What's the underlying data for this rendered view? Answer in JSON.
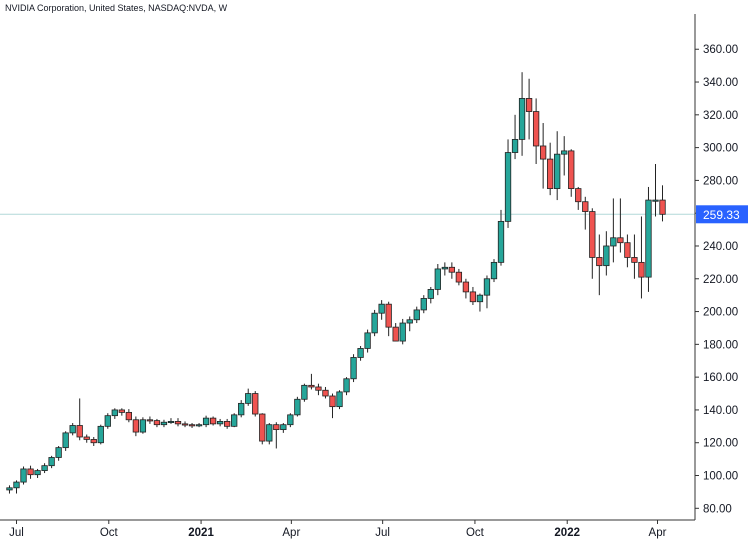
{
  "header": {
    "title": "NVIDIA Corporation, United States, NASDAQ:NVDA, W"
  },
  "chart_data": {
    "type": "candlestick",
    "title": "NVIDIA Corporation, United States, NASDAQ:NVDA, W",
    "interval": "W",
    "ylim": [
      75,
      370
    ],
    "y_ticks": [
      80,
      100,
      120,
      140,
      160,
      180,
      200,
      220,
      240,
      260,
      280,
      300,
      320,
      340,
      360
    ],
    "y_tick_labels": [
      "80.00",
      "100.00",
      "120.00",
      "140.00",
      "160.00",
      "180.00",
      "200.00",
      "220.00",
      "240.00",
      "260.00",
      "280.00",
      "300.00",
      "320.00",
      "340.00",
      "360.00"
    ],
    "x_tick_labels": [
      "Jul",
      "Oct",
      "2021",
      "Apr",
      "Jul",
      "Oct",
      "2022",
      "Apr"
    ],
    "x_tick_dates": [
      "2020-07-01",
      "2020-10-01",
      "2021-01-01",
      "2021-04-01",
      "2021-07-01",
      "2021-10-01",
      "2022-01-01",
      "2022-04-01"
    ],
    "last_price": 259.33,
    "last_price_label": "259.33",
    "colors": {
      "up": "#26a69a",
      "down": "#ef5350",
      "price_line": "#b2d8d8",
      "price_tag": "#2962ff"
    },
    "series": [
      {
        "type": "candlestick",
        "date": [
          "2020-06-22",
          "2020-06-29",
          "2020-07-06",
          "2020-07-13",
          "2020-07-20",
          "2020-07-27",
          "2020-08-03",
          "2020-08-10",
          "2020-08-17",
          "2020-08-24",
          "2020-08-31",
          "2020-09-07",
          "2020-09-14",
          "2020-09-21",
          "2020-09-28",
          "2020-10-05",
          "2020-10-12",
          "2020-10-19",
          "2020-10-26",
          "2020-11-02",
          "2020-11-09",
          "2020-11-16",
          "2020-11-23",
          "2020-11-30",
          "2020-12-07",
          "2020-12-14",
          "2020-12-21",
          "2020-12-28",
          "2021-01-04",
          "2021-01-11",
          "2021-01-18",
          "2021-01-25",
          "2021-02-01",
          "2021-02-08",
          "2021-02-15",
          "2021-02-22",
          "2021-03-01",
          "2021-03-08",
          "2021-03-15",
          "2021-03-22",
          "2021-03-29",
          "2021-04-05",
          "2021-04-12",
          "2021-04-19",
          "2021-04-26",
          "2021-05-03",
          "2021-05-10",
          "2021-05-17",
          "2021-05-24",
          "2021-05-31",
          "2021-06-07",
          "2021-06-14",
          "2021-06-21",
          "2021-06-28",
          "2021-07-05",
          "2021-07-12",
          "2021-07-19",
          "2021-07-26",
          "2021-08-02",
          "2021-08-09",
          "2021-08-16",
          "2021-08-23",
          "2021-08-30",
          "2021-09-06",
          "2021-09-13",
          "2021-09-20",
          "2021-09-27",
          "2021-10-04",
          "2021-10-11",
          "2021-10-18",
          "2021-10-25",
          "2021-11-01",
          "2021-11-08",
          "2021-11-15",
          "2021-11-22",
          "2021-11-29",
          "2021-12-06",
          "2021-12-13",
          "2021-12-20",
          "2021-12-27",
          "2022-01-03",
          "2022-01-10",
          "2022-01-17",
          "2022-01-24",
          "2022-01-31",
          "2022-02-07",
          "2022-02-14",
          "2022-02-21",
          "2022-02-28",
          "2022-03-07",
          "2022-03-14",
          "2022-03-21",
          "2022-03-28",
          "2022-04-04"
        ],
        "open": [
          91.2,
          92.5,
          96,
          104,
          100.5,
          103,
          106,
          111,
          117,
          126,
          130.5,
          123.5,
          122,
          120,
          130,
          136.5,
          140,
          138.5,
          134,
          126.5,
          134,
          133.5,
          131,
          132.5,
          133,
          131.5,
          131,
          130.5,
          131,
          135,
          131.5,
          133,
          130,
          137,
          144,
          150,
          137.5,
          121,
          131,
          128,
          131,
          137,
          146.5,
          155,
          154,
          152,
          148.5,
          142,
          151,
          159,
          172,
          177.5,
          187,
          199,
          204.5,
          190.5,
          182,
          193,
          195,
          201,
          208,
          213.5,
          226,
          227,
          224,
          218,
          212,
          206,
          210,
          220,
          230,
          255,
          297,
          305,
          330,
          322,
          301,
          293,
          275,
          296,
          298,
          275,
          267,
          261,
          233,
          228,
          240,
          245,
          242,
          233,
          230,
          221,
          268,
          268
        ],
        "close": [
          92.5,
          96,
          104,
          100.5,
          103,
          106,
          111,
          117,
          126,
          130.5,
          123.5,
          122,
          120,
          130,
          136.5,
          140,
          138.5,
          134,
          126.5,
          134,
          133.5,
          131,
          132.5,
          133,
          131.5,
          131,
          130.5,
          131,
          135,
          131.5,
          133,
          130,
          137,
          144,
          150,
          137.5,
          121,
          131,
          128,
          131,
          137,
          146.5,
          155,
          154,
          152,
          148.5,
          142,
          151,
          159,
          172,
          177.5,
          187,
          199,
          204.5,
          190.5,
          182,
          193,
          195,
          201,
          208,
          213.5,
          226,
          227,
          224,
          218,
          212,
          206,
          210,
          220,
          230,
          255,
          297,
          305,
          330,
          322,
          301,
          293,
          275,
          296,
          298,
          275,
          267,
          261,
          233,
          228,
          240,
          245,
          242,
          233,
          230,
          221,
          268,
          268,
          259.33
        ],
        "high": [
          94,
          97,
          105.5,
          106,
          104,
          107.5,
          112,
          118,
          127,
          132,
          147,
          125,
          123.5,
          131,
          138,
          141,
          141,
          140.5,
          136,
          135.5,
          136,
          134.5,
          134,
          135,
          135,
          133,
          132,
          132,
          136.5,
          136,
          134.5,
          134.5,
          138,
          146,
          153,
          151.5,
          138,
          132,
          132.5,
          132,
          138,
          148,
          156,
          162,
          156,
          154,
          150,
          152,
          160,
          174,
          179,
          189,
          201,
          207,
          206,
          193,
          195.5,
          197,
          203,
          210,
          215,
          229,
          230,
          230,
          226,
          220,
          215,
          211,
          222,
          232,
          262,
          305,
          320,
          346,
          342,
          330,
          315,
          303,
          310,
          307,
          299,
          276,
          270,
          263,
          247,
          249,
          269,
          269,
          247,
          247,
          258,
          276,
          290,
          277
        ],
        "low": [
          89,
          89,
          94.5,
          98,
          98.5,
          101.5,
          104.5,
          109,
          115,
          124.5,
          121.5,
          120,
          118,
          119,
          128.5,
          134.5,
          136.5,
          132.5,
          124,
          125.5,
          131.5,
          129.5,
          129.5,
          131.5,
          130,
          129.5,
          129,
          129.5,
          129.5,
          130.5,
          130,
          128.5,
          129.5,
          135.5,
          142.5,
          136,
          119,
          119,
          116.5,
          126,
          129.5,
          136,
          145,
          152.5,
          149,
          147,
          135,
          140.5,
          149,
          157,
          170,
          175,
          185,
          195,
          185,
          182,
          180,
          188,
          193,
          199,
          205,
          210,
          222,
          220,
          216,
          208,
          204,
          200,
          202,
          218,
          228,
          251,
          293,
          295,
          305,
          290,
          275,
          271,
          268,
          283,
          270,
          262,
          250,
          220,
          210,
          222,
          230,
          236,
          227,
          220,
          208,
          212,
          258,
          255
        ]
      }
    ]
  }
}
